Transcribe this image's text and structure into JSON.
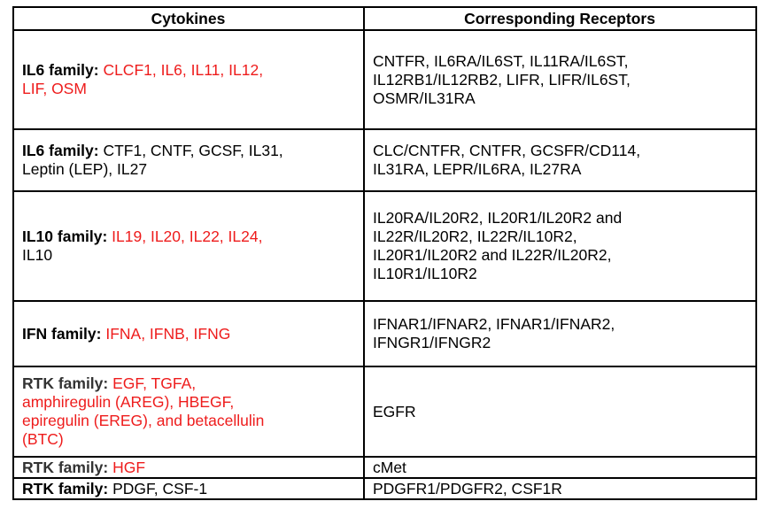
{
  "table": {
    "headers": [
      "Cytokines",
      "Corresponding Receptors"
    ],
    "rows": [
      {
        "family": "IL6 family:",
        "family_style": "black",
        "members": [
          {
            "text": "CLCF1, IL6, IL11, IL12,",
            "color": "red"
          },
          {
            "text": "LIF, OSM",
            "color": "red"
          }
        ],
        "receptors": [
          "CNTFR, IL6RA/IL6ST, IL11RA/IL6ST,",
          "IL12RB1/IL12RB2, LIFR, LIFR/IL6ST,",
          "OSMR/IL31RA"
        ]
      },
      {
        "family": "IL6 family:",
        "family_style": "black",
        "members": [
          {
            "text": "CTF1, CNTF, GCSF, IL31,",
            "color": "black"
          },
          {
            "text": "Leptin (LEP), IL27",
            "color": "black"
          }
        ],
        "receptors": [
          "CLC/CNTFR, CNTFR, GCSFR/CD114,",
          "IL31RA, LEPR/IL6RA, IL27RA"
        ]
      },
      {
        "family": "IL10 family:",
        "family_style": "black",
        "members": [
          {
            "text": "IL19, IL20, IL22, IL24,",
            "color": "red"
          },
          {
            "text": "IL10",
            "color": "black"
          }
        ],
        "receptors": [
          "IL20RA/IL20R2, IL20R1/IL20R2 and",
          "IL22R/IL20R2, IL22R/IL10R2,",
          "IL20R1/IL20R2 and IL22R/IL20R2,",
          "IL10R1/IL10R2"
        ]
      },
      {
        "family": "IFN family:",
        "family_style": "black",
        "members": [
          {
            "text": "IFNA, IFNB, IFNG",
            "color": "red"
          }
        ],
        "receptors": [
          "IFNAR1/IFNAR2, IFNAR1/IFNAR2,",
          "IFNGR1/IFNGR2"
        ]
      },
      {
        "family": "RTK family:",
        "family_style": "grey",
        "members": [
          {
            "text": "EGF, TGFA,",
            "color": "red"
          },
          {
            "text": "amphiregulin (AREG), HBEGF,",
            "color": "red"
          },
          {
            "text": "epiregulin (EREG), and betacellulin",
            "color": "red"
          },
          {
            "text": "(BTC)",
            "color": "red"
          }
        ],
        "receptors": [
          "EGFR"
        ]
      },
      {
        "family": "RTK family:",
        "family_style": "grey",
        "members": [
          {
            "text": "HGF",
            "color": "red"
          }
        ],
        "receptors": [
          "cMet"
        ]
      },
      {
        "family": "RTK family:",
        "family_style": "black",
        "members": [
          {
            "text": "PDGF, CSF-1",
            "color": "black"
          }
        ],
        "receptors": [
          "PDGFR1/PDGFR2, CSF1R"
        ]
      }
    ],
    "colors": {
      "red": "#ee1c1c",
      "black": "#000000",
      "grey": "#333333",
      "border": "#000000"
    }
  }
}
